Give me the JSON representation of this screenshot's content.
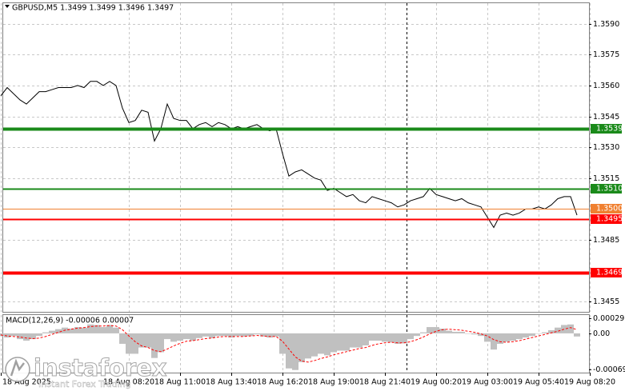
{
  "chart_data": [
    {
      "type": "line",
      "title": "GBPUSD,M5 1.3499 1.3499 1.3496 1.3497",
      "categories": [
        "18 Aug 2025",
        null,
        null,
        null,
        null,
        null,
        null,
        null,
        null,
        null,
        null,
        null,
        null,
        null,
        null,
        null,
        null,
        null,
        null,
        null,
        "18 Aug 08:20",
        null,
        null,
        null,
        null,
        null,
        null,
        null,
        "18 Aug 11:00",
        null,
        null,
        null,
        null,
        null,
        null,
        null,
        "18 Aug 13:40",
        null,
        null,
        null,
        null,
        null,
        null,
        null,
        "18 Aug 16:20",
        null,
        null,
        null,
        null,
        null,
        null,
        null,
        "18 Aug 19:00",
        null,
        null,
        null,
        null,
        null,
        null,
        null,
        "18 Aug 21:40",
        null,
        null,
        null,
        null,
        null,
        null,
        null,
        "19 Aug 00:20",
        null,
        null,
        null,
        null,
        null,
        null,
        null,
        "19 Aug 03:00",
        null,
        null,
        null,
        null,
        null,
        null,
        null,
        "19 Aug 05:40",
        null,
        null,
        null,
        null,
        null,
        null,
        null,
        "19 Aug 08:20"
      ],
      "series": [
        {
          "color": "#000000",
          "values": [
            1.3555,
            1.3559,
            1.3556,
            1.3553,
            1.3551,
            1.3554,
            1.3557,
            1.3557,
            1.3558,
            1.3559,
            1.3559,
            1.3559,
            1.356,
            1.3559,
            1.3562,
            1.3562,
            1.356,
            1.3562,
            1.356,
            1.3549,
            1.3542,
            1.3543,
            1.3548,
            1.3547,
            1.3533,
            1.3539,
            1.3551,
            1.3544,
            1.3543,
            1.3543,
            1.3539,
            1.3541,
            1.3542,
            1.354,
            1.3542,
            1.3541,
            1.3539,
            1.354,
            1.3539,
            1.354,
            1.3541,
            1.3539,
            1.3538,
            1.3539,
            1.3527,
            1.3516,
            1.3518,
            1.3519,
            1.3517,
            1.3515,
            1.3514,
            1.3509,
            1.351,
            1.3508,
            1.3506,
            1.3507,
            1.3504,
            1.3503,
            1.3506,
            1.3505,
            1.3504,
            1.3503,
            1.3501,
            1.3502,
            1.3504,
            1.3505,
            1.3506,
            1.351,
            1.3507,
            1.3506,
            1.3505,
            1.3504,
            1.3505,
            1.3503,
            1.3502,
            1.3501,
            1.3496,
            1.3491,
            1.3497,
            1.3498,
            1.3497,
            1.3498,
            1.35,
            1.35,
            1.3501,
            1.35,
            1.3502,
            1.3505,
            1.3506,
            1.3506,
            1.3497,
            null,
            null
          ]
        }
      ],
      "ylim": [
        1.345,
        1.36
      ],
      "yticks": [
        {
          "value": 1.359,
          "label": "1.3590"
        },
        1.3575,
        {
          "value": 1.356,
          "label": "1.3560"
        },
        1.3545,
        {
          "value": 1.353,
          "label": "1.3530"
        },
        1.3515,
        1.3485,
        1.3455
      ],
      "grid": true,
      "levels": [
        {
          "value": 1.3539,
          "label": "1.3539",
          "color": "#1a8a1a",
          "style": "thick"
        },
        {
          "value": 1.351,
          "label": "1.3510",
          "color": "#1a8a1a",
          "style": "thin"
        },
        {
          "value": 1.35,
          "label": "1.3500",
          "color": "#f08030",
          "style": "hair"
        },
        {
          "value": 1.3495,
          "label": "1.3495",
          "color": "#ff0000",
          "style": "thin"
        },
        {
          "value": 1.3469,
          "label": "1.3469",
          "color": "#ff0000",
          "style": "thick"
        }
      ]
    },
    {
      "type": "bar",
      "title": "MACD(12,26,9) -0.00006 0.00007",
      "series": [
        {
          "type": "bar",
          "color": "#c0c0c0",
          "values": [
            -5e-05,
            -8e-05,
            -5e-05,
            -0.00011,
            -0.00014,
            -0.00011,
            -5e-05,
            2e-05,
            5e-05,
            8e-05,
            0.00011,
            9e-05,
            0.00012,
            0.00011,
            0.00017,
            0.00016,
            0.00012,
            0.00016,
            0.00011,
            -0.0002,
            -0.00039,
            -0.00039,
            -0.00027,
            -0.00027,
            -0.00047,
            -0.00036,
            -0.00011,
            -0.00016,
            -0.00014,
            -0.00011,
            -0.00014,
            -9e-05,
            -6e-05,
            -9e-05,
            -5e-05,
            -5e-05,
            -8e-05,
            -5e-05,
            -6e-05,
            -5e-05,
            -2e-05,
            -6e-05,
            -8e-05,
            -6e-05,
            -0.00039,
            -0.00067,
            -0.0007,
            -0.00055,
            -0.00048,
            -0.00044,
            -0.00039,
            -0.00042,
            -0.00036,
            -0.00033,
            -0.00033,
            -0.00027,
            -0.00027,
            -0.00023,
            -0.00014,
            -0.00014,
            -0.00016,
            -0.00017,
            -0.0002,
            -0.00019,
            -0.00011,
            -5e-05,
            2e-05,
            0.00012,
            0.00012,
            9e-05,
            5e-05,
            3e-05,
            3e-05,
            0,
            -2e-05,
            -5e-05,
            -0.00016,
            -0.00031,
            -0.0002,
            -0.00016,
            -0.00014,
            -0.00011,
            -8e-05,
            -5e-05,
            0,
            2e-05,
            6e-05,
            0.00011,
            0.00016,
            0.00017,
            -6e-05,
            null,
            null
          ]
        },
        {
          "type": "line",
          "color": "#ff0000",
          "values": [
            -3e-05,
            -5e-05,
            -6e-05,
            -7e-05,
            -9e-05,
            -0.0001,
            -9e-05,
            -6e-05,
            -2e-05,
            2e-05,
            6e-05,
            8e-05,
            0.0001,
            0.00011,
            0.00013,
            0.00014,
            0.00014,
            0.00015,
            0.00014,
            7e-05,
            -5e-05,
            -0.00016,
            -0.00024,
            -0.00027,
            -0.00033,
            -0.00035,
            -0.0003,
            -0.00024,
            -0.00019,
            -0.00015,
            -0.00014,
            -0.00012,
            -0.0001,
            -9e-05,
            -7e-05,
            -6e-05,
            -6e-05,
            -6e-05,
            -6e-05,
            -5e-05,
            -4e-05,
            -5e-05,
            -6e-05,
            -6e-05,
            -0.00015,
            -0.0003,
            -0.00045,
            -0.00053,
            -0.00055,
            -0.00052,
            -0.00048,
            -0.00045,
            -0.00041,
            -0.00038,
            -0.00035,
            -0.00032,
            -0.00029,
            -0.00027,
            -0.00023,
            -0.0002,
            -0.00018,
            -0.00017,
            -0.00018,
            -0.00018,
            -0.00016,
            -0.00012,
            -7e-05,
            -1e-05,
            4e-05,
            7e-05,
            8e-05,
            7e-05,
            6e-05,
            4e-05,
            2e-05,
            -1e-05,
            -5e-05,
            -0.00012,
            -0.00016,
            -0.00017,
            -0.00016,
            -0.00014,
            -0.00011,
            -8e-05,
            -5e-05,
            -2e-05,
            1e-05,
            4e-05,
            8e-05,
            0.00011,
            7e-05,
            null,
            null
          ]
        }
      ],
      "ylim": [
        -0.00075,
        0.00035
      ],
      "yticks": [
        0.00029,
        {
          "value": 0,
          "label": "0.00"
        },
        -0.00069
      ]
    }
  ],
  "watermark": {
    "brand": "instaforex",
    "tagline": "Instant Forex Trading"
  }
}
